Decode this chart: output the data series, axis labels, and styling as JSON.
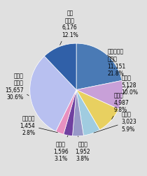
{
  "slices": [
    {
      "label": "放火・防火\nの疑い\n11,151\n21.8%",
      "value": 11151,
      "color": "#4a7ab5"
    },
    {
      "label": "こんろ\n5,128\n10.0%",
      "value": 5128,
      "color": "#c8a0d8"
    },
    {
      "label": "たばこ\n4,987\n9.8%",
      "value": 4987,
      "color": "#e8d060"
    },
    {
      "label": "たき火\n3,023\n5.9%",
      "value": 3023,
      "color": "#a0cce0"
    },
    {
      "label": "火遊び\n1,952\n3.8%",
      "value": 1952,
      "color": "#9898c8"
    },
    {
      "label": "火入れ\n1,596\n3.1%",
      "value": 1596,
      "color": "#7040a0"
    },
    {
      "label": "ストーブ\n1,454\n2.8%",
      "value": 1454,
      "color": "#e890c0"
    },
    {
      "label": "その他\nの原因\n15,657\n30.6%",
      "value": 15657,
      "color": "#b8c0f0"
    },
    {
      "label": "不明\n調査中\n6,176\n12.1%",
      "value": 6176,
      "color": "#3060a8"
    }
  ],
  "background_color": "#e0e0e0",
  "fontsize": 5.5
}
